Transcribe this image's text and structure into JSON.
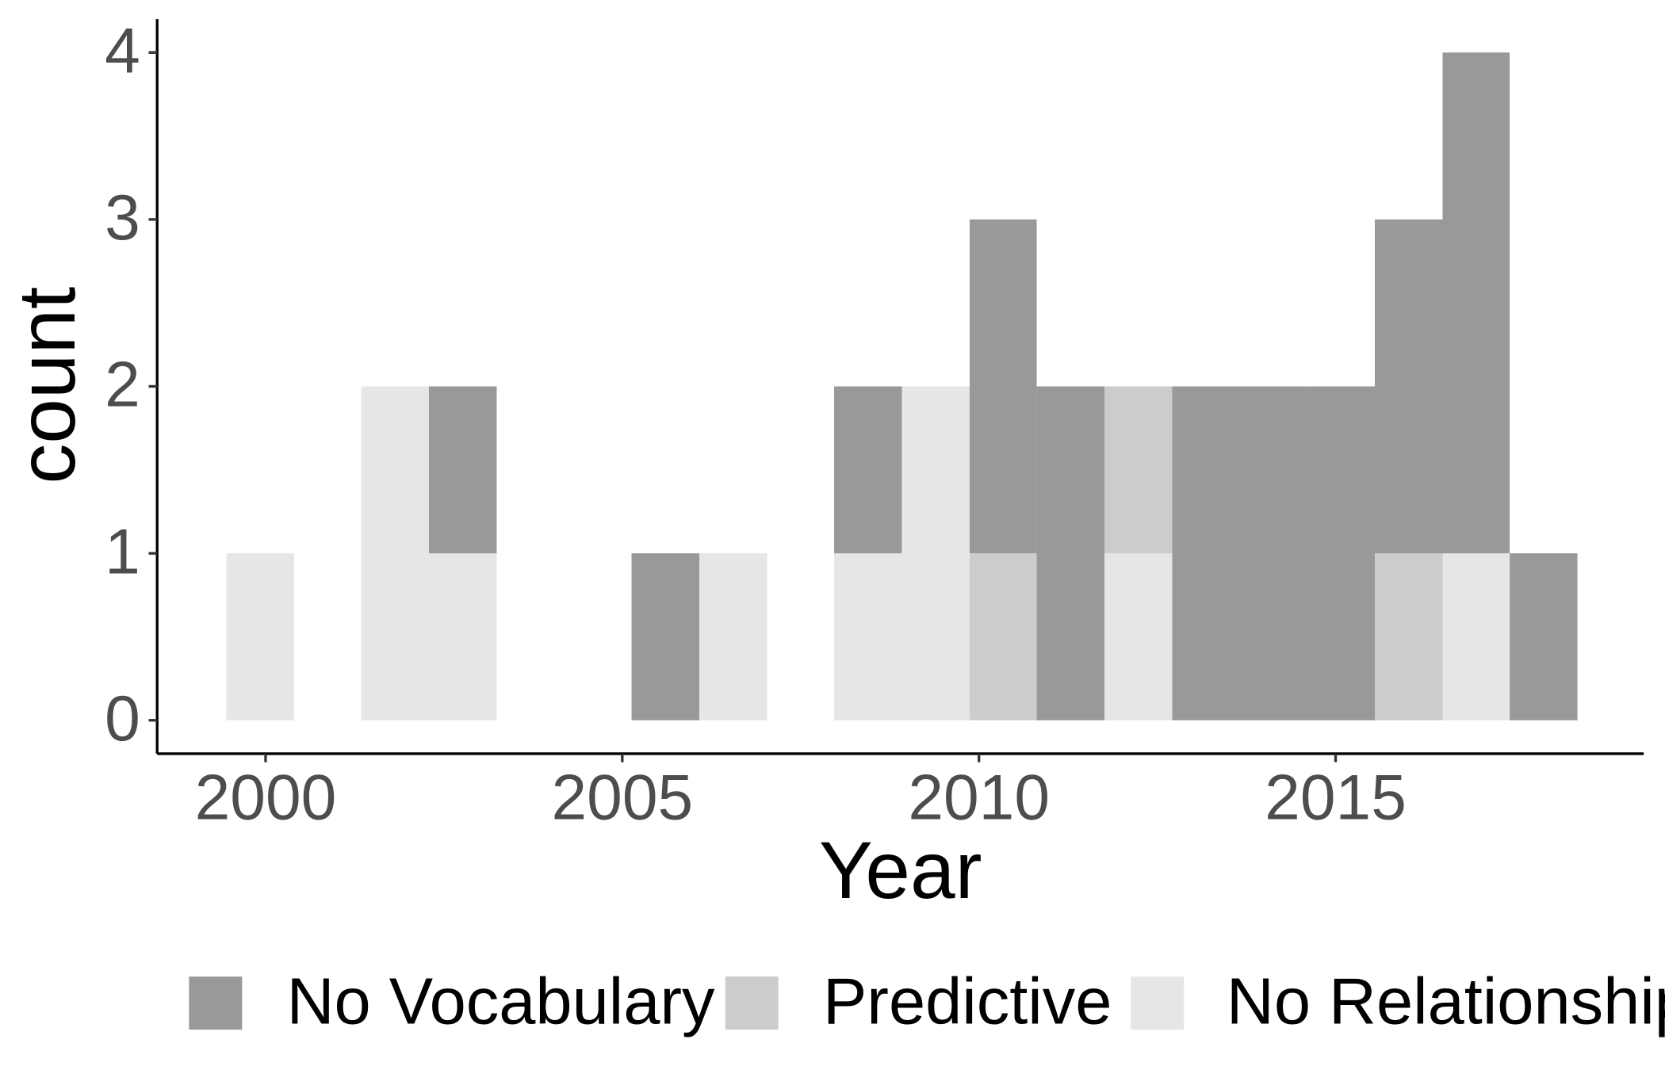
{
  "chart_data": {
    "type": "histogram",
    "x_label": "Year",
    "y_label": "count",
    "bins": [
      1999.45,
      2000.4,
      2001.34,
      2002.29,
      2003.24,
      2004.18,
      2005.13,
      2006.08,
      2007.03,
      2007.97,
      2008.92,
      2009.87,
      2010.81,
      2011.76,
      2012.71,
      2013.66,
      2014.6,
      2015.55,
      2016.5,
      2017.44,
      2018.39
    ],
    "series": [
      {
        "name": "No Relationship",
        "color": "#e6e6e6",
        "values": [
          1,
          0,
          2,
          1,
          0,
          0,
          0,
          1,
          0,
          1,
          2,
          0,
          0,
          1,
          0,
          0,
          0,
          0,
          1,
          0
        ]
      },
      {
        "name": "Predictive",
        "color": "#cccccc",
        "values": [
          0,
          0,
          0,
          0,
          0,
          0,
          0,
          0,
          0,
          0,
          0,
          1,
          0,
          1,
          0,
          0,
          0,
          1,
          0,
          0
        ]
      },
      {
        "name": "No Vocabulary",
        "color": "#999999",
        "values": [
          0,
          0,
          0,
          1,
          0,
          0,
          1,
          0,
          0,
          1,
          0,
          2,
          2,
          0,
          2,
          2,
          2,
          2,
          3,
          1
        ]
      }
    ],
    "legend_order": [
      "No Vocabulary",
      "Predictive",
      "No Relationship"
    ],
    "legend": "bottom",
    "xlim": [
      1998.48,
      2019.32
    ],
    "xticks": [
      2000,
      2005,
      2010,
      2015
    ],
    "ylim": [
      -0.2,
      4.2
    ],
    "yticks": [
      0,
      1,
      2,
      3,
      4
    ]
  }
}
